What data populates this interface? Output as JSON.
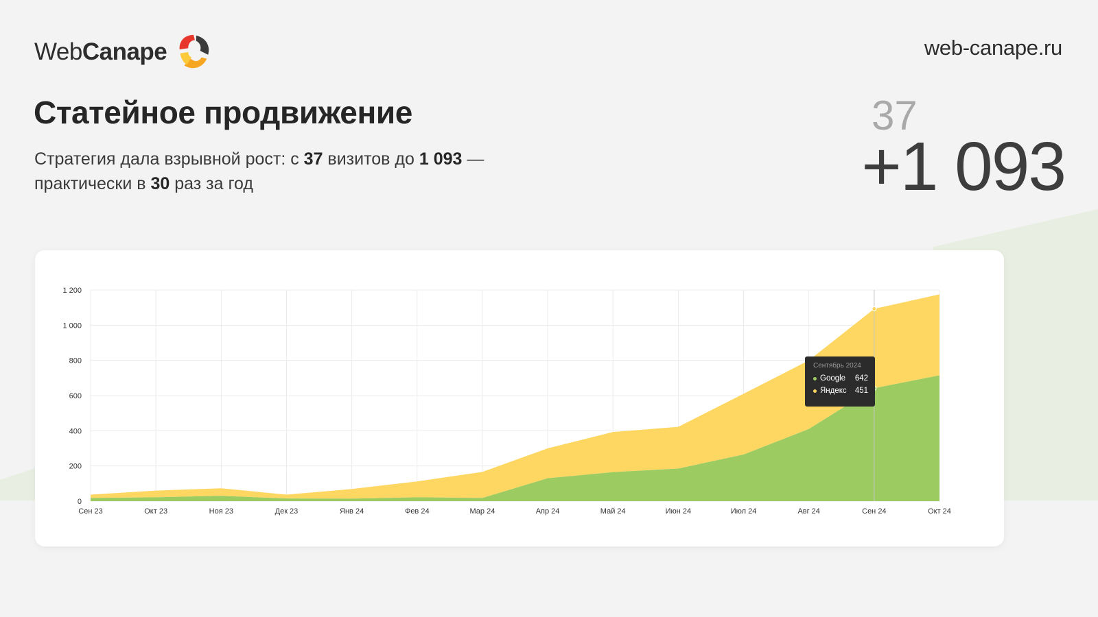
{
  "header": {
    "logo_web": "Web",
    "logo_canape": "Canape",
    "site": "web-canape.ru"
  },
  "title": "Статейное продвижение",
  "subtitle": {
    "p1": "Стратегия дала взрывной рост: с ",
    "b1": "37",
    "p2": " визитов  до ",
    "b2": "1 093",
    "p3": "  —",
    "p4": "практически в ",
    "b3": "30",
    "p5": " раз за год"
  },
  "stats": {
    "old": "37",
    "new": "+1 093"
  },
  "colors": {
    "google": "#9ccb62",
    "yandex": "#fdd762",
    "background": "#f3f3f3",
    "bg_green": "#e8efe2"
  },
  "tooltip": {
    "title": "Сентябрь 2024",
    "rows": [
      {
        "name": "Google",
        "value": "642"
      },
      {
        "name": "Яндекс",
        "value": "451"
      }
    ]
  },
  "chart_data": {
    "type": "area",
    "stacked": true,
    "categories": [
      "Сен 23",
      "Окт 23",
      "Ноя 23",
      "Дек 23",
      "Янв 24",
      "Фев 24",
      "Мар 24",
      "Апр 24",
      "Май 24",
      "Июн 24",
      "Июл 24",
      "Авг 24",
      "Сен 24",
      "Окт 24"
    ],
    "series": [
      {
        "name": "Google",
        "color": "#9ccb62",
        "values": [
          18,
          22,
          30,
          15,
          14,
          22,
          18,
          130,
          165,
          185,
          265,
          410,
          642,
          715
        ]
      },
      {
        "name": "Яндекс",
        "color": "#fdd762",
        "values": [
          19,
          38,
          43,
          22,
          55,
          90,
          148,
          170,
          228,
          237,
          345,
          390,
          451,
          460
        ]
      }
    ],
    "ylim": [
      0,
      1200
    ],
    "yticks": [
      0,
      200,
      400,
      600,
      800,
      1000,
      1200
    ],
    "ytick_labels": [
      "0",
      "200",
      "400",
      "600",
      "800",
      "1 000",
      "1 200"
    ],
    "grid": true,
    "highlight_index": 12
  }
}
